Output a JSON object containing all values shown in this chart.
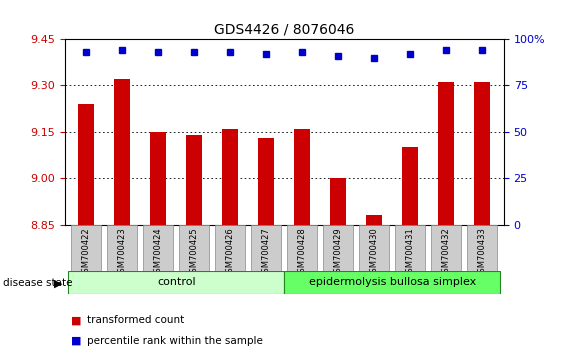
{
  "title": "GDS4426 / 8076046",
  "samples": [
    "GSM700422",
    "GSM700423",
    "GSM700424",
    "GSM700425",
    "GSM700426",
    "GSM700427",
    "GSM700428",
    "GSM700429",
    "GSM700430",
    "GSM700431",
    "GSM700432",
    "GSM700433"
  ],
  "bar_values": [
    9.24,
    9.32,
    9.15,
    9.14,
    9.16,
    9.13,
    9.16,
    9.0,
    8.88,
    9.1,
    9.31,
    9.31
  ],
  "percentile_values": [
    93,
    94,
    93,
    93,
    93,
    92,
    93,
    91,
    90,
    92,
    94,
    94
  ],
  "ylim_left": [
    8.85,
    9.45
  ],
  "ylim_right": [
    0,
    100
  ],
  "yticks_left": [
    8.85,
    9.0,
    9.15,
    9.3,
    9.45
  ],
  "yticks_right": [
    0,
    25,
    50,
    75,
    100
  ],
  "bar_color": "#cc0000",
  "dot_color": "#0000cc",
  "title_fontsize": 10,
  "tick_fontsize": 8,
  "label_fontsize": 7,
  "control_label": "control",
  "disease_label": "epidermolysis bullosa simplex",
  "control_color": "#ccffcc",
  "disease_color": "#66ff66",
  "group_edge_color": "#228822",
  "disease_state_label": "disease state",
  "legend_bar_label": "transformed count",
  "legend_dot_label": "percentile rank within the sample",
  "n_control": 6,
  "n_disease": 6
}
